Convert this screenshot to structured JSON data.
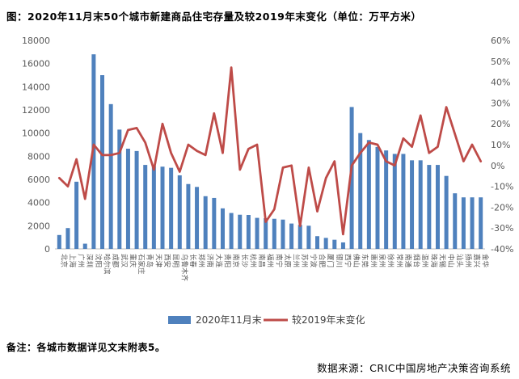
{
  "title": "图：2020年11月末50个城市新建商品住宅存量及较2019年末变化（单位：万平方米）",
  "footnote": "备注：各城市数据详见文末附表5。",
  "source": "数据来源：CRIC中国房地产决策咨询系统",
  "legend": {
    "bar_label": "2020年11月末",
    "line_label": "较2019年末变化"
  },
  "colors": {
    "bar": "#4f81bd",
    "line": "#be4b48",
    "axis_text": "#595959",
    "axis_line": "#bfbfbf"
  },
  "chart_data": {
    "type": "bar+line combo",
    "title": "2020年11月末50个城市新建商品住宅存量及较2019年末变化",
    "unit": "万平方米",
    "legend_position": "bottom",
    "grid": false,
    "categories": [
      "北京",
      "上海",
      "广州",
      "深圳",
      "沈阳",
      "哈尔滨",
      "成都",
      "武汉",
      "重庆",
      "石家庄",
      "青岛",
      "天津",
      "西安",
      "昆明",
      "乌鲁木齐",
      "长春",
      "郑州",
      "济南",
      "大连",
      "贵阳",
      "南京",
      "长沙",
      "杭州",
      "南昌",
      "福州",
      "南宁",
      "太原",
      "兰州",
      "苏州",
      "宁波",
      "合肥",
      "厦门",
      "银川",
      "西宁",
      "佛山",
      "东莞",
      "惠州",
      "泉州",
      "徐州",
      "常州",
      "南通",
      "烟台",
      "温州",
      "珠海",
      "无锡",
      "中山",
      "汕头",
      "扬州",
      "嘉兴",
      "金华"
    ],
    "series": [
      {
        "name": "2020年11月末",
        "type": "bar",
        "axis": "left",
        "color": "#4f81bd",
        "values": [
          1200,
          1800,
          5800,
          450,
          16800,
          15000,
          12500,
          10300,
          8650,
          8450,
          7250,
          7150,
          7100,
          7000,
          6350,
          5600,
          5350,
          4550,
          4400,
          3500,
          3100,
          2950,
          2930,
          2680,
          2650,
          2600,
          2530,
          2190,
          2070,
          2000,
          1100,
          950,
          790,
          560,
          12250,
          10000,
          9400,
          8800,
          8500,
          8200,
          8200,
          7650,
          7650,
          7250,
          7250,
          6300,
          4800,
          4450,
          4450,
          4450
        ]
      },
      {
        "name": "较2019年末变化",
        "type": "line",
        "axis": "right",
        "color": "#be4b48",
        "values_pct": [
          -6,
          -10,
          3,
          -16,
          10,
          5,
          5,
          6,
          17,
          18,
          11,
          -2,
          20,
          6,
          -3,
          10,
          7,
          5,
          25,
          6,
          47,
          -2,
          8,
          10,
          -27,
          -21,
          -1,
          0,
          -29,
          -1,
          -22,
          -6,
          2,
          -33,
          0,
          6,
          11,
          10,
          2,
          0,
          13,
          9,
          24,
          6,
          9,
          28,
          15,
          2,
          10,
          2
        ]
      }
    ],
    "left_axis": {
      "min": 0,
      "max": 18000,
      "step": 2000,
      "tick_labels": [
        "18000",
        "16000",
        "14000",
        "12000",
        "10000",
        "8000",
        "6000",
        "4000",
        "2000",
        "0"
      ]
    },
    "right_axis": {
      "min": -40,
      "max": 60,
      "step": 10,
      "tick_labels": [
        "60%",
        "50%",
        "40%",
        "30%",
        "20%",
        "10%",
        "0%",
        "-10%",
        "-20%",
        "-30%",
        "-40%"
      ]
    }
  }
}
